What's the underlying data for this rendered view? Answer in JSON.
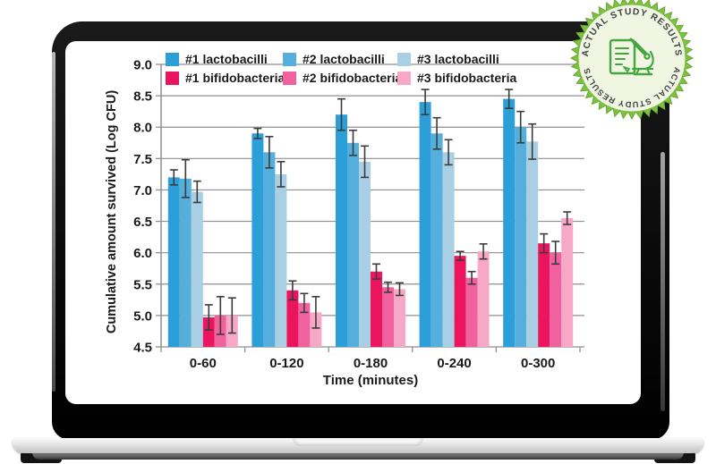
{
  "page": {
    "background": "#ffffff"
  },
  "badge": {
    "top_text": "ACTUAL STUDY RESULTS",
    "bottom_text": "~   ACTUAL STUDY RESULTS   ~",
    "icon": "document-microscope-icon",
    "colors": {
      "burst": "#7CC142",
      "burst_edge": "#69A832",
      "inner": "#F0F6E2",
      "text": "#3F4447",
      "icon": "#43A63F"
    }
  },
  "chart_data": {
    "type": "bar",
    "title": "",
    "xlabel": "Time (minutes)",
    "ylabel": "Cumulative amount survived (Log CFU)",
    "ylim": [
      4.5,
      9.0
    ],
    "ytick_step": 0.5,
    "categories": [
      "0-60",
      "0-120",
      "0-180",
      "0-240",
      "0-300"
    ],
    "series": [
      {
        "name": "#1 lactobacilli",
        "color": "#2D9FD8",
        "values": [
          7.2,
          7.9,
          8.2,
          8.4,
          8.45
        ],
        "errors": [
          0.12,
          0.08,
          0.25,
          0.2,
          0.15
        ]
      },
      {
        "name": "#2 lactobacilli",
        "color": "#56AEDC",
        "values": [
          7.18,
          7.6,
          7.75,
          7.9,
          8.0
        ],
        "errors": [
          0.3,
          0.25,
          0.2,
          0.25,
          0.25
        ]
      },
      {
        "name": "#3 lactobacilli",
        "color": "#A8CFE3",
        "values": [
          6.97,
          7.25,
          7.45,
          7.6,
          7.77
        ],
        "errors": [
          0.17,
          0.2,
          0.25,
          0.2,
          0.28
        ]
      },
      {
        "name": "#1 bifidobacteria",
        "color": "#EB145F",
        "values": [
          4.97,
          5.4,
          5.7,
          5.95,
          6.15
        ],
        "errors": [
          0.2,
          0.15,
          0.12,
          0.07,
          0.15
        ]
      },
      {
        "name": "#2 bifidobacteria",
        "color": "#F0619D",
        "values": [
          5.0,
          5.2,
          5.45,
          5.6,
          6.0
        ],
        "errors": [
          0.3,
          0.15,
          0.08,
          0.1,
          0.18
        ]
      },
      {
        "name": "#3 bifidobacteria",
        "color": "#F7A8C6",
        "values": [
          5.0,
          5.05,
          5.42,
          6.02,
          6.55
        ],
        "errors": [
          0.28,
          0.25,
          0.1,
          0.12,
          0.1
        ]
      }
    ],
    "grid": true,
    "legend_position": "top-inside",
    "axis_color": "#8F8F8F",
    "error_bar_color": "#3B3B3B",
    "text_color": "#1A1A1A"
  }
}
